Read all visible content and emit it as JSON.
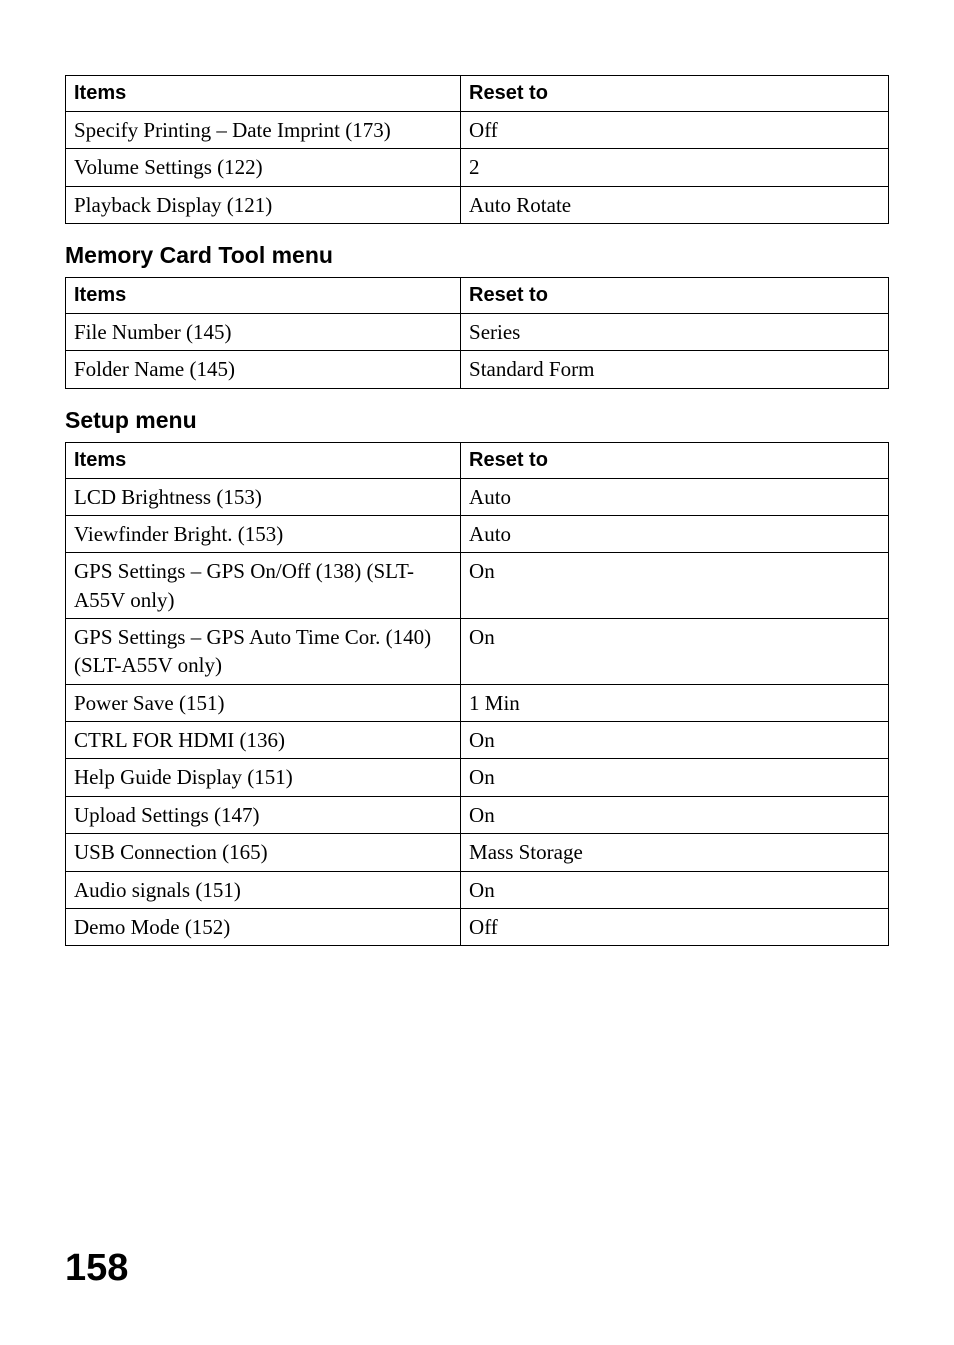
{
  "headers": {
    "items": "Items",
    "reset_to": "Reset to"
  },
  "table1": {
    "rows": [
      {
        "item": "Specify Printing – Date Imprint (173)",
        "reset": "Off"
      },
      {
        "item": "Volume Settings (122)",
        "reset": "2"
      },
      {
        "item": "Playback Display (121)",
        "reset": "Auto Rotate"
      }
    ]
  },
  "section2": {
    "heading": "Memory Card Tool menu",
    "rows": [
      {
        "item": "File Number (145)",
        "reset": "Series"
      },
      {
        "item": "Folder Name (145)",
        "reset": "Standard Form"
      }
    ]
  },
  "section3": {
    "heading": "Setup menu",
    "rows": [
      {
        "item": "LCD Brightness (153)",
        "reset": "Auto"
      },
      {
        "item": "Viewfinder Bright. (153)",
        "reset": "Auto"
      },
      {
        "item": "GPS Settings – GPS On/Off (138) (SLT-A55V only)",
        "reset": "On"
      },
      {
        "item": "GPS Settings – GPS Auto Time Cor. (140) (SLT-A55V only)",
        "reset": "On"
      },
      {
        "item": "Power Save (151)",
        "reset": "1 Min"
      },
      {
        "item": "CTRL FOR HDMI (136)",
        "reset": "On"
      },
      {
        "item": "Help Guide Display (151)",
        "reset": "On"
      },
      {
        "item": "Upload Settings (147)",
        "reset": "On"
      },
      {
        "item": "USB Connection (165)",
        "reset": "Mass Storage"
      },
      {
        "item": "Audio signals (151)",
        "reset": "On"
      },
      {
        "item": "Demo Mode (152)",
        "reset": "Off"
      }
    ]
  },
  "page_number": "158"
}
